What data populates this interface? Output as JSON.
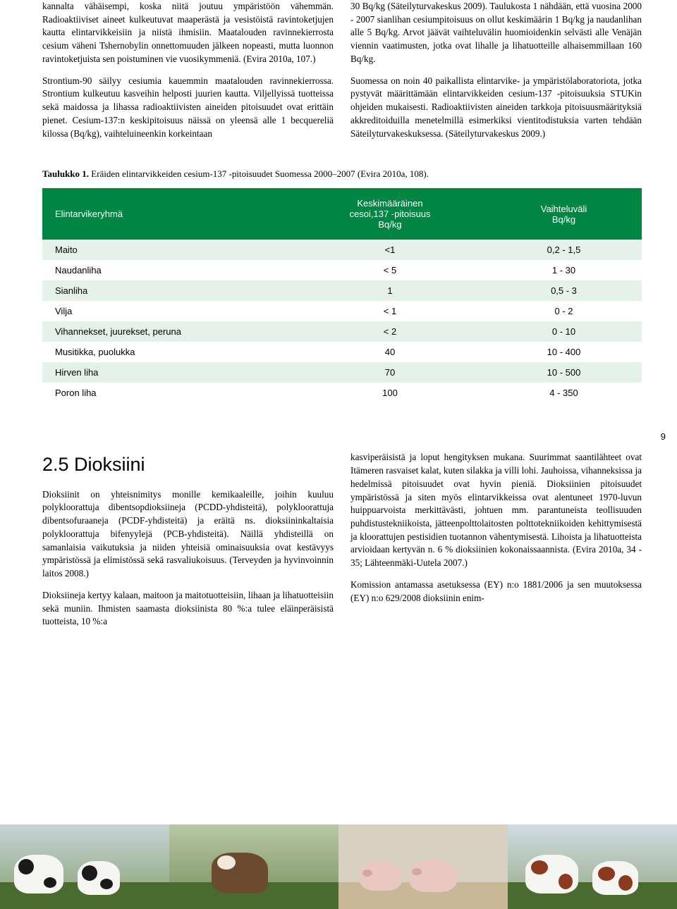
{
  "leftCol": {
    "p1": "kannalta vähäisempi, koska niitä joutuu ympäristöön vähemmän. Radioaktiiviset aineet kulkeutuvat maaperästä ja vesistöistä ravintoketjujen kautta elintarvikkeisiin ja niistä ihmisiin. Maatalouden ravinnekierrosta cesium väheni Tshernobylin onnettomuuden jälkeen nopeasti, mutta luonnon ravintoketjuista sen poistuminen vie vuosikymmeniä. (Evira 2010a, 107.)",
    "p2": "Strontium-90 säilyy cesiumia kauemmin maatalouden ravinnekierrossa. Strontium kulkeutuu kasveihin helposti juurien kautta. Viljellyissä tuotteissa sekä maidossa ja lihassa radioaktiivisten aineiden pitoisuudet ovat erittäin pienet. Cesium-137:n keskipitoisuus näissä on yleensä alle 1 becquereliä kilossa (Bq/kg), vaihteluineenkin korkeintaan"
  },
  "rightCol": {
    "p1": "30 Bq/kg (Säteilyturvakeskus 2009). Taulukosta 1 nähdään, että vuosina 2000 - 2007 sianlihan cesiumpitoisuus on ollut keskimäärin 1 Bq/kg ja naudanlihan alle 5 Bq/kg. Arvot jäävät vaihteluvälin huomioidenkin selvästi alle Venäjän viennin vaatimusten, jotka ovat lihalle ja lihatuotteille alhaisemmillaan 160 Bq/kg.",
    "p2": "Suomessa on noin 40 paikallista elintarvike- ja ympäristölaboratoriota, jotka pystyvät määrittämään elintarvikkeiden cesium-137 -pitoisuuksia STUKin ohjeiden mukaisesti. Radioaktiivisten aineiden tarkkoja pitoisuusmäärityksiä akkreditoiduilla menetelmillä esimerkiksi vientitodistuksia varten tehdään Säteilyturvakeskuksessa. (Säteilyturvakeskus 2009.)"
  },
  "tableCaption": {
    "label": "Taulukko 1.",
    "text": "  Eräiden elintarvikkeiden cesium-137 -pitoisuudet Suomessa 2000–2007 (Evira 2010a, 108)."
  },
  "table": {
    "headers": [
      "Elintarvikeryhmä",
      "Keskimääräinen\ncesoi,137 -pitoisuus\nBq/kg",
      "Vaihteluväli\nBq/kg"
    ],
    "rows": [
      [
        "Maito",
        "<1",
        "0,2 - 1,5"
      ],
      [
        "Naudanliha",
        "< 5",
        "1 - 30"
      ],
      [
        "Sianliha",
        "1",
        "0,5 - 3"
      ],
      [
        "Vilja",
        "< 1",
        "0 - 2"
      ],
      [
        "Vihannekset, juurekset, peruna",
        "< 2",
        "0 - 10"
      ],
      [
        "Musitikka, puolukka",
        "40",
        "10 - 400"
      ],
      [
        "Hirven liha",
        "70",
        "10 - 500"
      ],
      [
        "Poron liha",
        "100",
        "4 - 350"
      ]
    ],
    "header_bg": "#008542",
    "row_odd_bg": "#e5f2e9",
    "row_even_bg": "#ffffff"
  },
  "pageNumber": "9",
  "section": {
    "heading": "2.5  Dioksiini",
    "left": {
      "p1": "Dioksiinit on yhteisnimitys monille kemikaaleille, joihin kuuluu polykloorattuja dibentsopdioksiineja (PCDD-yhdisteitä), polykloorattuja dibentsofuraaneja (PCDF-yhdisteitä) ja eräitä ns. dioksiininkaltaisia polykloorattuja bifenyylejä (PCB-yhdisteitä). Näillä yhdisteillä on samanlaisia vaikutuksia ja niiden yhteisiä ominaisuuksia ovat kestävyys ympäristössä ja elimistössä sekä rasvaliukoisuus. (Terveyden ja hyvinvoinnin laitos 2008.)",
      "p2": "Dioksiineja kertyy kalaan, maitoon ja maitotuotteisiin, lihaan ja lihatuotteisiin sekä muniin. Ihmisten saamasta dioksiinista 80 %:a tulee eläinperäisistä tuotteista, 10 %:a"
    },
    "right": {
      "p1": "kasviperäisistä ja loput hengityksen mukana. Suurimmat saantilähteet ovat Itämeren rasvaiset kalat, kuten silakka ja villi lohi. Jauhoissa, vihanneksissa ja hedelmissä pitoisuudet ovat hyvin pieniä. Dioksiinien pitoisuudet ympäristössä ja siten myös elintarvikkeissa ovat alentuneet 1970-luvun huippuarvoista merkittävästi, johtuen mm. parantuneista teollisuuden puhdistustekniikoista, jätteenpolttolaitosten polttotekniikoiden kehittymisestä ja kloorattujen pestisidien tuotannon vähentymisestä. Lihoista ja lihatuotteista arvioidaan kertyvän n. 6 % dioksiinien kokonaissaannista. (Evira 2010a, 34 - 35; Lähteenmäki-Uutela 2007.)",
      "p2": "Komission antamassa asetuksessa (EY) n:o 1881/2006 ja sen muutoksessa (EY) n:o 629/2008 dioksiinin enim-"
    }
  },
  "footer_colors": {
    "sky1": "#cfd8dc",
    "sky2": "#b8c8a8",
    "sky3": "#d8d0c0",
    "sky4": "#c8d4dc",
    "grass": "#4a6b2f"
  }
}
